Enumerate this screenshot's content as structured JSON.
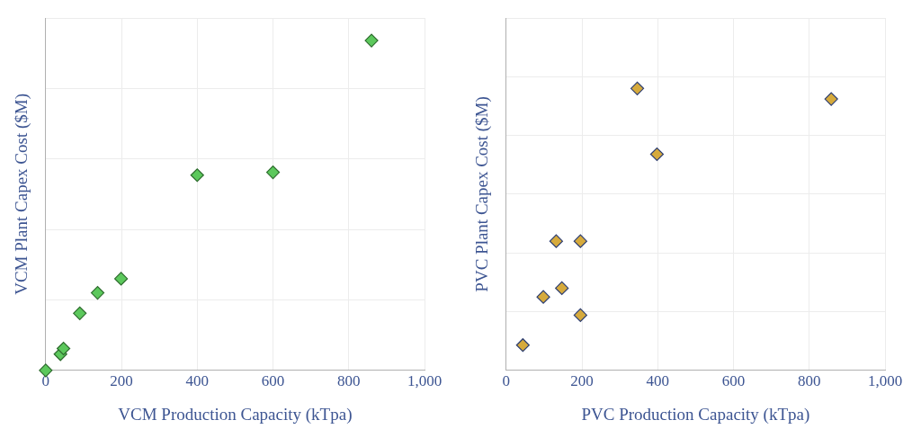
{
  "chart_data": [
    {
      "type": "scatter",
      "x_label": "VCM Production Capacity (kTpa)",
      "y_label": "VCM Plant Capex Cost ($M)",
      "x": [
        0,
        39,
        47,
        90,
        137,
        199,
        400,
        600,
        860
      ],
      "values": [
        0,
        23,
        31,
        81,
        110,
        130,
        277,
        281,
        468
      ],
      "color": "#5cc85c",
      "marker": "diamond",
      "xlim": [
        0,
        1000
      ],
      "xticks": [
        0,
        200,
        400,
        600,
        800,
        {
          "value": 1000,
          "label": "1,000"
        }
      ],
      "ylim": [
        0,
        500
      ],
      "yticks": [
        0,
        100,
        200,
        300,
        400,
        500
      ],
      "grid": true,
      "tick_labels": "x"
    },
    {
      "type": "scatter",
      "x_label": "PVC Production Capacity (kTpa)",
      "y_label": "PVC Plant Capex Cost ($M)",
      "x": [
        44,
        98,
        147,
        132,
        196,
        196,
        346,
        398,
        858
      ],
      "values": [
        43,
        125,
        140,
        220,
        220,
        94,
        480,
        368,
        462
      ],
      "color": "#d6aa3c",
      "marker": "diamond",
      "xlim": [
        0,
        1000
      ],
      "xticks": [
        0,
        200,
        400,
        600,
        800,
        {
          "value": 1000,
          "label": "1,000"
        }
      ],
      "ylim": [
        0,
        600
      ],
      "yticks": [
        0,
        100,
        200,
        300,
        400,
        500,
        600
      ],
      "grid": true,
      "tick_labels": "x"
    }
  ]
}
